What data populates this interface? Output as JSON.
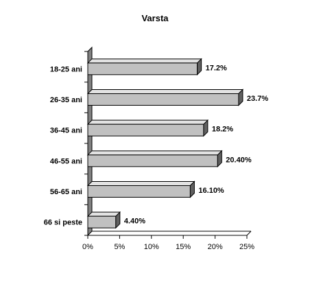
{
  "chart_data": {
    "type": "bar",
    "orientation": "horizontal",
    "title": "Varsta",
    "categories": [
      "18-25 ani",
      "26-35 ani",
      "36-45 ani",
      "46-55 ani",
      "56-65 ani",
      "66 si peste"
    ],
    "values": [
      17.2,
      23.7,
      18.2,
      20.4,
      16.1,
      4.4
    ],
    "data_labels": [
      "17.2%",
      "23.7%",
      "18.2%",
      "20.40%",
      "16.10%",
      "4.40%"
    ],
    "xlim": [
      0,
      25
    ],
    "x_ticks": [
      0,
      5,
      10,
      15,
      20,
      25
    ],
    "x_tick_labels": [
      "0%",
      "5%",
      "10%",
      "15%",
      "20%",
      "25%"
    ],
    "xlabel": "",
    "ylabel": "",
    "grid": false,
    "legend": "none",
    "bar_color": "#c0c0c0",
    "bar_top_color": "#e2e2e2",
    "bar_side_color": "#606060",
    "wall_color": "#808080"
  }
}
